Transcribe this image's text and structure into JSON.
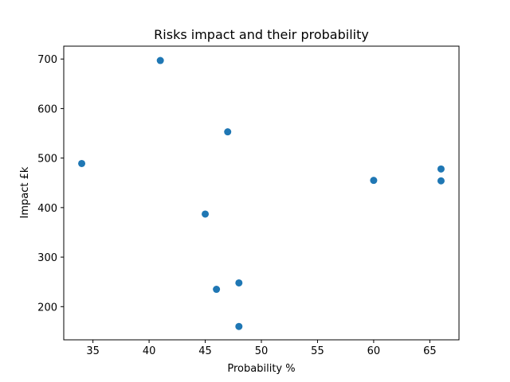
{
  "chart_data": {
    "type": "scatter",
    "title": "Risks impact and their probability",
    "xlabel": "Probability %",
    "ylabel": "Impact £k",
    "xlim": [
      32.4,
      67.6
    ],
    "ylim": [
      133,
      726
    ],
    "xticks": [
      35,
      40,
      45,
      50,
      55,
      60,
      65
    ],
    "yticks": [
      200,
      300,
      400,
      500,
      600,
      700
    ],
    "grid": false,
    "legend": "none",
    "marker_color": "#1f77b4",
    "series": [
      {
        "points": [
          {
            "x": 34,
            "y": 489
          },
          {
            "x": 41,
            "y": 697
          },
          {
            "x": 45,
            "y": 387
          },
          {
            "x": 46,
            "y": 235
          },
          {
            "x": 47,
            "y": 553
          },
          {
            "x": 48,
            "y": 248
          },
          {
            "x": 48,
            "y": 160
          },
          {
            "x": 60,
            "y": 455
          },
          {
            "x": 66,
            "y": 478
          },
          {
            "x": 66,
            "y": 454
          }
        ]
      }
    ]
  }
}
